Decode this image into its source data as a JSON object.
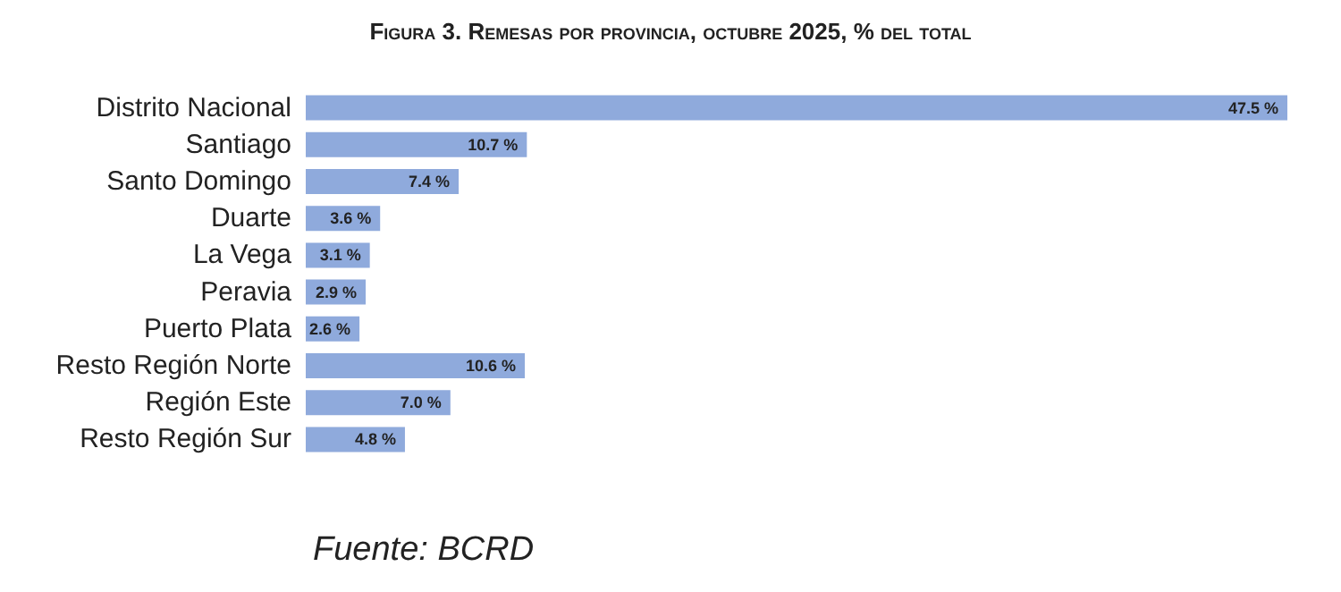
{
  "chart_data": {
    "type": "bar",
    "orientation": "horizontal",
    "title": "Figura 3. Remesas por provincia, octubre 2025, % del total",
    "categories": [
      "Distrito Nacional",
      "Santiago",
      "Santo Domingo",
      "Duarte",
      "La Vega",
      "Peravia",
      "Puerto Plata",
      "Resto Región Norte",
      "Región Este",
      "Resto Región Sur"
    ],
    "values": [
      47.5,
      10.7,
      7.4,
      3.6,
      3.1,
      2.9,
      2.6,
      10.6,
      7.0,
      4.8
    ],
    "value_labels": [
      "47.5 %",
      "10.7 %",
      "7.4 %",
      "3.6 %",
      "3.1 %",
      "2.9 %",
      "2.6 %",
      "10.6 %",
      "7.0 %",
      "4.8 %"
    ],
    "color": "#8faadc",
    "annotations": [
      "Fuente: BCRD"
    ]
  }
}
